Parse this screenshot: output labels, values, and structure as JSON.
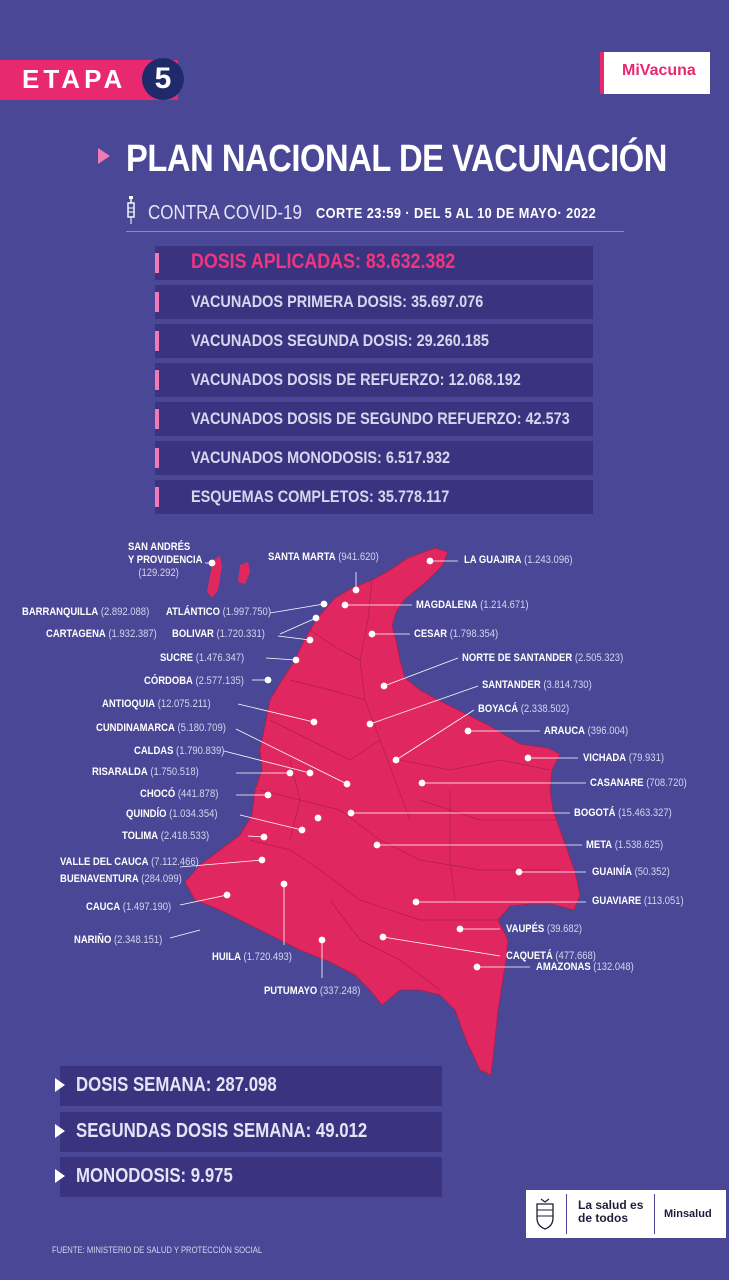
{
  "header": {
    "etapa_label": "ETAPA",
    "etapa_number": "5",
    "logo": "MiVacuna",
    "title": "PLAN NACIONAL DE VACUNACIÓN",
    "subtitle": "CONTRA COVID-19",
    "corte": "CORTE 23:59  ·  DEL 5 AL 10 DE MAYO· 2022"
  },
  "stats": [
    {
      "label": "DOSIS APLICADAS: 83.632.382"
    },
    {
      "label": "VACUNADOS PRIMERA DOSIS: 35.697.076"
    },
    {
      "label": "VACUNADOS SEGUNDA DOSIS: 29.260.185"
    },
    {
      "label": "VACUNADOS  DOSIS DE REFUERZO: 12.068.192"
    },
    {
      "label": "VACUNADOS  DOSIS DE SEGUNDO REFUERZO: 42.573"
    },
    {
      "label": "VACUNADOS MONODOSIS: 6.517.932"
    },
    {
      "label": "ESQUEMAS COMPLETOS: 35.778.117"
    }
  ],
  "map_labels": {
    "san_andres_1": "SAN ANDRÉS",
    "san_andres_2": "Y PROVIDENCIA",
    "san_andres_v": "(129.292)",
    "santa_marta": "SANTA MARTA",
    "santa_marta_v": "(941.620)",
    "la_guajira": "LA GUAJIRA",
    "la_guajira_v": "(1.243.096)",
    "barranquilla": "BARRANQUILLA",
    "barranquilla_v": "(2.892.088)",
    "atlantico": "ATLÁNTICO",
    "atlantico_v": "(1.997.750)",
    "magdalena": "MAGDALENA",
    "magdalena_v": "(1.214.671)",
    "cartagena": "CARTAGENA",
    "cartagena_v": "(1.932.387)",
    "bolivar": "BOLIVAR",
    "bolivar_v": "(1.720.331)",
    "cesar": "CESAR",
    "cesar_v": "(1.798.354)",
    "sucre": "SUCRE",
    "sucre_v": "(1.476.347)",
    "norte_santander": "NORTE DE SANTANDER",
    "norte_santander_v": "(2.505.323)",
    "cordoba": "CÓRDOBA",
    "cordoba_v": "(2.577.135)",
    "santander": "SANTANDER",
    "santander_v": "(3.814.730)",
    "antioquia": "ANTIOQUIA",
    "antioquia_v": "(12.075.211)",
    "boyaca": "BOYACÁ",
    "boyaca_v": "(2.338.502)",
    "cundinamarca": "CUNDINAMARCA",
    "cundinamarca_v": "(5.180.709)",
    "arauca": "ARAUCA",
    "arauca_v": "(396.004)",
    "caldas": "CALDAS",
    "caldas_v": "(1.790.839)",
    "vichada": "VICHADA",
    "vichada_v": "(79.931)",
    "risaralda": "RISARALDA",
    "risaralda_v": "(1.750.518)",
    "casanare": "CASANARE",
    "casanare_v": "(708.720)",
    "choco": "CHOCÓ",
    "choco_v": "(441.878)",
    "bogota": "BOGOTÁ",
    "bogota_v": "(15.463.327)",
    "quindio": "QUINDÍO",
    "quindio_v": "(1.034.354)",
    "tolima": "TOLIMA",
    "tolima_v": "(2.418.533)",
    "meta": "META",
    "meta_v": "(1.538.625)",
    "valle": "VALLE DEL CAUCA",
    "valle_v": "(7.112.466)",
    "guainia": "GUAINÍA",
    "guainia_v": "(50.352)",
    "buenaventura": "BUENAVENTURA",
    "buenaventura_v": "(284.099)",
    "guaviare": "GUAVIARE",
    "guaviare_v": "(113.051)",
    "cauca": "CAUCA",
    "cauca_v": "(1.497.190)",
    "vaupes": "VAUPÉS",
    "vaupes_v": "(39.682)",
    "narino": "NARIÑO",
    "narino_v": "(2.348.151)",
    "caqueta": "CAQUETÁ",
    "caqueta_v": "(477.668)",
    "huila": "HUILA",
    "huila_v": "(1.720.493)",
    "amazonas": "AMAZONAS",
    "amazonas_v": "(132.048)",
    "putumayo": "PUTUMAYO",
    "putumayo_v": "(337.248)"
  },
  "weekly": [
    {
      "label": "DOSIS SEMANA: 287.098"
    },
    {
      "label": "SEGUNDAS DOSIS SEMANA: 49.012"
    },
    {
      "label": "MONODOSIS: 9.975"
    }
  ],
  "footer": {
    "slogan": "La salud es de todos",
    "ministry": "Minsalud",
    "source": "FUENTE: MINISTERIO DE SALUD Y PROTECCIÓN SOCIAL"
  },
  "colors": {
    "background": "#4a4896",
    "accent_pink": "#e8286f",
    "map_fill": "#e0275f"
  }
}
